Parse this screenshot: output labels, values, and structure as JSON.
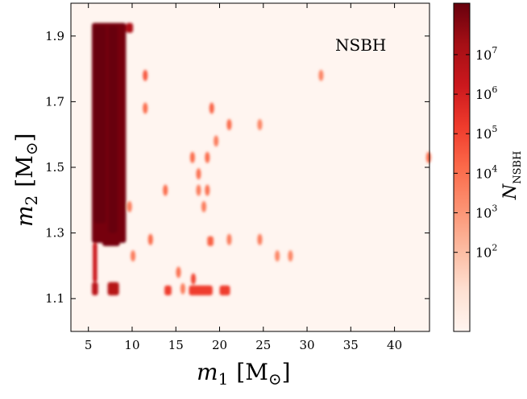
{
  "chart_data": {
    "type": "heatmap",
    "title": "",
    "annotation": "NSBH",
    "xlabel": {
      "symbol": "m",
      "subscript": "1",
      "unit": "[M",
      "unit_sub": "⊙",
      "unit_close": "]"
    },
    "ylabel": {
      "symbol": "m",
      "subscript": "2",
      "unit": "[M",
      "unit_sub": "⊙",
      "unit_close": "]"
    },
    "xlim": [
      3,
      44
    ],
    "ylim": [
      1.0,
      2.0
    ],
    "xticks": [
      5,
      10,
      15,
      20,
      25,
      30,
      35,
      40
    ],
    "xtick_labels": [
      "5",
      "10",
      "15",
      "20",
      "25",
      "30",
      "35",
      "40"
    ],
    "yticks": [
      1.1,
      1.3,
      1.5,
      1.7,
      1.9
    ],
    "ytick_labels": [
      "1.1",
      "1.3",
      "1.5",
      "1.7",
      "1.9"
    ],
    "colorbar": {
      "label": {
        "symbol": "N",
        "subscript": "NSBH"
      },
      "scale": "log",
      "ticks": [
        {
          "exp": 7,
          "label_base": "10",
          "label_exp": "7"
        },
        {
          "exp": 6,
          "label_base": "10",
          "label_exp": "6"
        },
        {
          "exp": 5,
          "label_base": "10",
          "label_exp": "5"
        },
        {
          "exp": 4,
          "label_base": "10",
          "label_exp": "4"
        },
        {
          "exp": 3,
          "label_base": "10",
          "label_exp": "3"
        },
        {
          "exp": 2,
          "label_base": "10",
          "label_exp": "2"
        }
      ],
      "range_exp": [
        0,
        8.3
      ],
      "colormap": [
        "#fff5f0",
        "#fee0d2",
        "#fcbba1",
        "#fc9272",
        "#fb6a4a",
        "#ef3b2c",
        "#cb181d",
        "#a50f15",
        "#67000d"
      ]
    },
    "regions": [
      {
        "type": "rect",
        "x": [
          5.4,
          9.3
        ],
        "y": [
          1.27,
          1.94
        ],
        "level": 0.97
      },
      {
        "type": "rect",
        "x": [
          9.3,
          10.1
        ],
        "y": [
          1.91,
          1.94
        ],
        "level": 0.85
      },
      {
        "type": "rect",
        "x": [
          5.6,
          7.0
        ],
        "y": [
          1.33,
          1.93
        ],
        "level": 1.0
      },
      {
        "type": "rect",
        "x": [
          7.3,
          8.3
        ],
        "y": [
          1.3,
          1.93
        ],
        "level": 1.0
      },
      {
        "type": "rect",
        "x": [
          6.6,
          8.6
        ],
        "y": [
          1.26,
          1.29
        ],
        "level": 0.97
      },
      {
        "type": "rect",
        "x": [
          5.5,
          6.0
        ],
        "y": [
          1.15,
          1.27
        ],
        "level": 0.75
      },
      {
        "type": "rect",
        "x": [
          5.4,
          6.1
        ],
        "y": [
          1.11,
          1.15
        ],
        "level": 0.8
      },
      {
        "type": "rect",
        "x": [
          7.2,
          8.5
        ],
        "y": [
          1.11,
          1.15
        ],
        "level": 0.82
      },
      {
        "type": "rect",
        "x": [
          13.7,
          14.5
        ],
        "y": [
          1.11,
          1.14
        ],
        "level": 0.62
      },
      {
        "type": "rect",
        "x": [
          16.5,
          19.2
        ],
        "y": [
          1.11,
          1.14
        ],
        "level": 0.62
      },
      {
        "type": "rect",
        "x": [
          20.0,
          21.2
        ],
        "y": [
          1.11,
          1.14
        ],
        "level": 0.62
      },
      {
        "type": "rect",
        "x": [
          18.6,
          19.3
        ],
        "y": [
          1.26,
          1.29
        ],
        "level": 0.52
      },
      {
        "type": "point",
        "x": 11.5,
        "y": 1.78,
        "level": 0.55
      },
      {
        "type": "point",
        "x": 11.5,
        "y": 1.68,
        "level": 0.5
      },
      {
        "type": "point",
        "x": 9.7,
        "y": 1.38,
        "level": 0.45
      },
      {
        "type": "point",
        "x": 12.1,
        "y": 1.28,
        "level": 0.5
      },
      {
        "type": "point",
        "x": 10.1,
        "y": 1.23,
        "level": 0.45
      },
      {
        "type": "point",
        "x": 13.8,
        "y": 1.43,
        "level": 0.5
      },
      {
        "type": "point",
        "x": 15.3,
        "y": 1.18,
        "level": 0.48
      },
      {
        "type": "point",
        "x": 15.8,
        "y": 1.13,
        "level": 0.45
      },
      {
        "type": "point",
        "x": 16.9,
        "y": 1.53,
        "level": 0.5
      },
      {
        "type": "point",
        "x": 17.6,
        "y": 1.48,
        "level": 0.48
      },
      {
        "type": "point",
        "x": 17.6,
        "y": 1.43,
        "level": 0.45
      },
      {
        "type": "point",
        "x": 18.2,
        "y": 1.38,
        "level": 0.45
      },
      {
        "type": "point",
        "x": 18.6,
        "y": 1.43,
        "level": 0.48
      },
      {
        "type": "point",
        "x": 18.6,
        "y": 1.53,
        "level": 0.5
      },
      {
        "type": "point",
        "x": 19.1,
        "y": 1.68,
        "level": 0.52
      },
      {
        "type": "point",
        "x": 19.6,
        "y": 1.58,
        "level": 0.45
      },
      {
        "type": "point",
        "x": 21.1,
        "y": 1.63,
        "level": 0.5
      },
      {
        "type": "point",
        "x": 21.1,
        "y": 1.28,
        "level": 0.45
      },
      {
        "type": "point",
        "x": 24.6,
        "y": 1.63,
        "level": 0.42
      },
      {
        "type": "point",
        "x": 24.6,
        "y": 1.28,
        "level": 0.45
      },
      {
        "type": "point",
        "x": 26.6,
        "y": 1.23,
        "level": 0.42
      },
      {
        "type": "point",
        "x": 28.1,
        "y": 1.23,
        "level": 0.42
      },
      {
        "type": "point",
        "x": 31.6,
        "y": 1.78,
        "level": 0.42
      },
      {
        "type": "point",
        "x": 43.9,
        "y": 1.53,
        "level": 0.5
      },
      {
        "type": "point",
        "x": 17.0,
        "y": 1.16,
        "level": 0.6
      }
    ]
  }
}
